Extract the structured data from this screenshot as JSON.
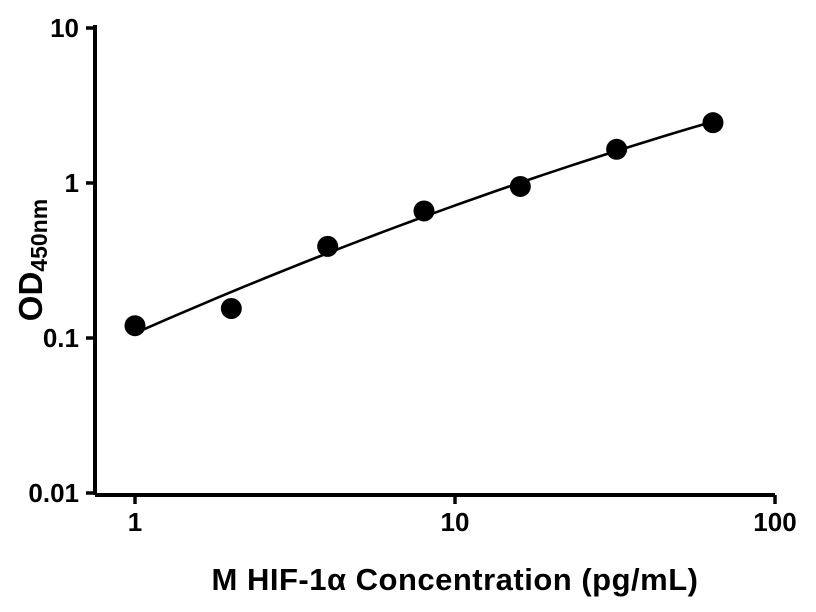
{
  "figure": {
    "background": "#ffffff",
    "axis_color": "#000000",
    "text_color": "#000000"
  },
  "chart_data": {
    "type": "scatter",
    "title": "",
    "xlabel": "M HIF-1α Concentration (pg/mL)",
    "ylabel_main": "OD",
    "ylabel_sub": "450nm",
    "x_scale": "log",
    "y_scale": "log",
    "xlim": [
      1,
      100
    ],
    "ylim": [
      0.01,
      10
    ],
    "x_ticks": [
      1,
      10,
      100
    ],
    "x_tick_labels": [
      "1",
      "10",
      "100"
    ],
    "y_ticks": [
      10,
      1,
      0.1,
      0.01
    ],
    "y_tick_labels": [
      "10",
      "1",
      "0.1",
      "0.01"
    ],
    "grid": false,
    "legend": "none",
    "points": {
      "x": [
        1,
        2,
        4,
        8,
        16,
        32,
        64
      ],
      "y": [
        0.12,
        0.155,
        0.39,
        0.66,
        0.95,
        1.65,
        2.45
      ]
    },
    "fit_line": "smooth quadratic fit in log-log space through standards",
    "marker": "filled-circle",
    "marker_color": "#000000",
    "line_color": "#000000"
  }
}
